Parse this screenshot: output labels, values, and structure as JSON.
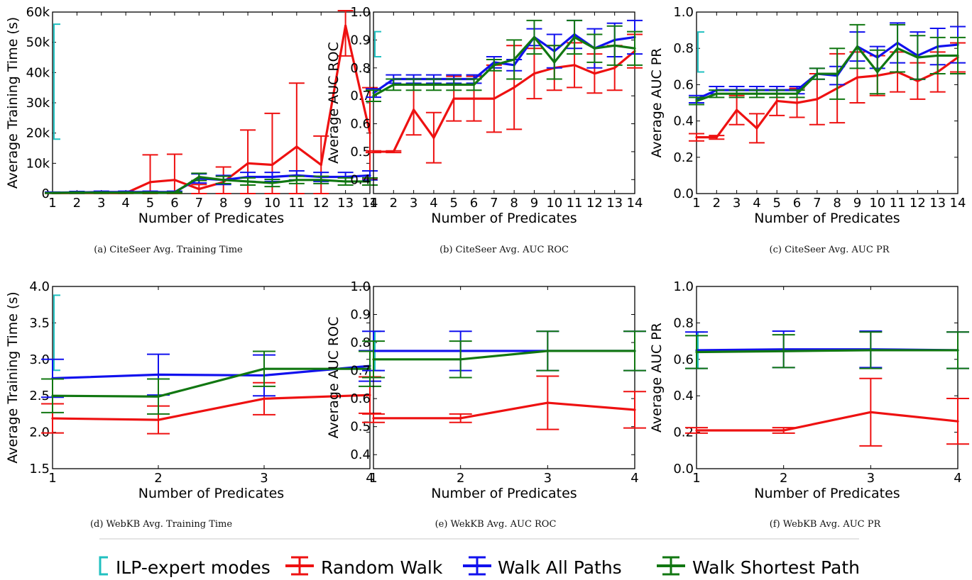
{
  "legend": {
    "entries": [
      {
        "label": "ILP-expert modes",
        "color": "#20c0c0",
        "marker": "bracket"
      },
      {
        "label": "Random Walk",
        "color": "#ee1111",
        "marker": "errorbar"
      },
      {
        "label": "Walk All Paths",
        "color": "#1111ee",
        "marker": "errorbar"
      },
      {
        "label": "Walk Shortest Path",
        "color": "#117711",
        "marker": "errorbar"
      }
    ]
  },
  "chart_data": [
    {
      "type": "line",
      "caption": "(a) CiteSeer Avg. Training Time",
      "xlabel": "Number of Predicates",
      "ylabel": "Average Training Time (s)",
      "xlim": [
        1,
        14
      ],
      "ylim": [
        0,
        60000
      ],
      "xticks": [
        "1",
        "2",
        "3",
        "4",
        "5",
        "6",
        "7",
        "8",
        "9",
        "10",
        "11",
        "12",
        "13",
        "14"
      ],
      "yticks": [
        "0",
        "10k",
        "20k",
        "30k",
        "40k",
        "50k",
        "60k"
      ],
      "ilp": {
        "y": 37000,
        "low": 18000,
        "high": 56000
      },
      "series": [
        {
          "name": "Random Walk",
          "color": "#ee1111",
          "x": [
            1,
            2,
            3,
            4,
            5,
            6,
            7,
            8,
            9,
            10,
            11,
            12,
            13,
            14
          ],
          "y": [
            150,
            200,
            200,
            150,
            3800,
            4500,
            1500,
            3800,
            10000,
            9500,
            15500,
            9500,
            55500,
            20000
          ],
          "err": [
            100,
            100,
            100,
            100,
            9000,
            8500,
            1500,
            5000,
            11000,
            17000,
            21000,
            9500,
            10000,
            15000
          ]
        },
        {
          "name": "Walk All Paths",
          "color": "#1111ee",
          "x": [
            1,
            2,
            3,
            4,
            5,
            6,
            7,
            8,
            9,
            10,
            11,
            12,
            13,
            14
          ],
          "y": [
            300,
            400,
            500,
            500,
            500,
            500,
            5000,
            4500,
            5500,
            5500,
            6000,
            5500,
            5500,
            6000
          ],
          "err": [
            200,
            300,
            300,
            300,
            300,
            300,
            1500,
            1500,
            1500,
            1500,
            1500,
            1500,
            1500,
            1500
          ]
        },
        {
          "name": "Walk Shortest Path",
          "color": "#117711",
          "x": [
            1,
            2,
            3,
            4,
            5,
            6,
            7,
            8,
            9,
            10,
            11,
            12,
            13,
            14
          ],
          "y": [
            200,
            300,
            300,
            300,
            300,
            300,
            5500,
            4500,
            4000,
            3500,
            4500,
            4500,
            4000,
            4000
          ],
          "err": [
            100,
            200,
            200,
            200,
            200,
            200,
            1200,
            1200,
            1200,
            1200,
            1200,
            1200,
            1200,
            1200
          ]
        }
      ]
    },
    {
      "type": "line",
      "caption": "(b) CiteSeer Avg. AUC ROC",
      "xlabel": "Number of Predicates",
      "ylabel": "Average AUC ROC",
      "xlim": [
        1,
        14
      ],
      "ylim": [
        0.35,
        1.0
      ],
      "xticks": [
        "1",
        "2",
        "3",
        "4",
        "5",
        "6",
        "7",
        "8",
        "9",
        "10",
        "11",
        "12",
        "13",
        "14"
      ],
      "yticks": [
        "0.4",
        "0.5",
        "0.6",
        "0.7",
        "0.8",
        "0.9",
        "1.0"
      ],
      "ilp": {
        "y": 0.88,
        "low": 0.84,
        "high": 0.93
      },
      "series": [
        {
          "name": "Random Walk",
          "color": "#ee1111",
          "x": [
            1,
            2,
            3,
            4,
            5,
            6,
            7,
            8,
            9,
            10,
            11,
            12,
            13,
            14
          ],
          "y": [
            0.5,
            0.5,
            0.65,
            0.55,
            0.69,
            0.69,
            0.69,
            0.73,
            0.78,
            0.8,
            0.81,
            0.78,
            0.8,
            0.86
          ],
          "err": [
            0.003,
            0.003,
            0.09,
            0.09,
            0.08,
            0.08,
            0.12,
            0.15,
            0.09,
            0.08,
            0.08,
            0.07,
            0.08,
            0.06
          ]
        },
        {
          "name": "Walk All Paths",
          "color": "#1111ee",
          "x": [
            1,
            2,
            3,
            4,
            5,
            6,
            7,
            8,
            9,
            10,
            11,
            12,
            13,
            14
          ],
          "y": [
            0.71,
            0.76,
            0.76,
            0.76,
            0.76,
            0.76,
            0.82,
            0.81,
            0.91,
            0.86,
            0.92,
            0.87,
            0.9,
            0.91
          ],
          "err": [
            0.015,
            0.015,
            0.015,
            0.015,
            0.015,
            0.015,
            0.02,
            0.02,
            0.03,
            0.06,
            0.05,
            0.07,
            0.06,
            0.06
          ]
        },
        {
          "name": "Walk Shortest Path",
          "color": "#117711",
          "x": [
            1,
            2,
            3,
            4,
            5,
            6,
            7,
            8,
            9,
            10,
            11,
            12,
            13,
            14
          ],
          "y": [
            0.7,
            0.74,
            0.74,
            0.74,
            0.74,
            0.74,
            0.81,
            0.83,
            0.91,
            0.82,
            0.91,
            0.87,
            0.88,
            0.87
          ],
          "err": [
            0.02,
            0.02,
            0.02,
            0.02,
            0.02,
            0.02,
            0.02,
            0.07,
            0.06,
            0.06,
            0.06,
            0.05,
            0.07,
            0.06
          ]
        }
      ]
    },
    {
      "type": "line",
      "caption": "(c) CiteSeer Avg. AUC PR",
      "xlabel": "Number of Predicates",
      "ylabel": "Average AUC PR",
      "xlim": [
        1,
        14
      ],
      "ylim": [
        0.0,
        1.0
      ],
      "xticks": [
        "1",
        "2",
        "3",
        "4",
        "5",
        "6",
        "7",
        "8",
        "9",
        "10",
        "11",
        "12",
        "13",
        "14"
      ],
      "yticks": [
        "0.0",
        "0.2",
        "0.4",
        "0.6",
        "0.8",
        "1.0"
      ],
      "ilp": {
        "y": 0.78,
        "low": 0.67,
        "high": 0.89
      },
      "series": [
        {
          "name": "Random Walk",
          "color": "#ee1111",
          "x": [
            1,
            2,
            3,
            4,
            5,
            6,
            7,
            8,
            9,
            10,
            11,
            12,
            13,
            14
          ],
          "y": [
            0.31,
            0.31,
            0.46,
            0.36,
            0.51,
            0.5,
            0.52,
            0.58,
            0.64,
            0.65,
            0.67,
            0.62,
            0.67,
            0.75
          ],
          "err": [
            0.02,
            0.01,
            0.08,
            0.08,
            0.08,
            0.08,
            0.14,
            0.19,
            0.14,
            0.11,
            0.11,
            0.1,
            0.11,
            0.08
          ]
        },
        {
          "name": "Walk All Paths",
          "color": "#1111ee",
          "x": [
            1,
            2,
            3,
            4,
            5,
            6,
            7,
            8,
            9,
            10,
            11,
            12,
            13,
            14
          ],
          "y": [
            0.52,
            0.57,
            0.57,
            0.57,
            0.57,
            0.57,
            0.66,
            0.65,
            0.81,
            0.75,
            0.83,
            0.76,
            0.81,
            0.82
          ],
          "err": [
            0.02,
            0.02,
            0.02,
            0.02,
            0.02,
            0.02,
            0.03,
            0.05,
            0.08,
            0.06,
            0.11,
            0.13,
            0.1,
            0.1
          ]
        },
        {
          "name": "Walk Shortest Path",
          "color": "#117711",
          "x": [
            1,
            2,
            3,
            4,
            5,
            6,
            7,
            8,
            9,
            10,
            11,
            12,
            13,
            14
          ],
          "y": [
            0.51,
            0.55,
            0.55,
            0.55,
            0.55,
            0.55,
            0.66,
            0.66,
            0.81,
            0.67,
            0.8,
            0.75,
            0.76,
            0.76
          ],
          "err": [
            0.02,
            0.02,
            0.02,
            0.02,
            0.02,
            0.02,
            0.03,
            0.14,
            0.12,
            0.12,
            0.13,
            0.12,
            0.1,
            0.1
          ]
        }
      ]
    },
    {
      "type": "line",
      "caption": "(d) WebKB Avg. Training Time",
      "xlabel": "Number of Predicates",
      "ylabel": "Average Training Time (s)",
      "xlim": [
        1,
        4
      ],
      "ylim": [
        1.5,
        4.0
      ],
      "xticks": [
        "1",
        "2",
        "3",
        "4"
      ],
      "yticks": [
        "1.5",
        "2.0",
        "2.5",
        "3.0",
        "3.5",
        "4.0"
      ],
      "ilp": {
        "y": 3.37,
        "low": 2.85,
        "high": 3.88
      },
      "series": [
        {
          "name": "Random Walk",
          "color": "#ee1111",
          "x": [
            1,
            2,
            3,
            4
          ],
          "y": [
            2.19,
            2.17,
            2.46,
            2.51
          ],
          "err": [
            0.2,
            0.19,
            0.22,
            0.25
          ]
        },
        {
          "name": "Walk All Paths",
          "color": "#1111ee",
          "x": [
            1,
            2,
            3,
            4
          ],
          "y": [
            2.74,
            2.79,
            2.78,
            2.91
          ],
          "err": [
            0.26,
            0.28,
            0.28,
            0.21
          ]
        },
        {
          "name": "Walk Shortest Path",
          "color": "#117711",
          "x": [
            1,
            2,
            3,
            4
          ],
          "y": [
            2.5,
            2.49,
            2.87,
            2.87
          ],
          "err": [
            0.23,
            0.24,
            0.24,
            0.24
          ]
        }
      ]
    },
    {
      "type": "line",
      "caption": "(e) WekKB Avg. AUC ROC",
      "xlabel": "Number of Predicates",
      "ylabel": "Average AUC ROC",
      "xlim": [
        1,
        4
      ],
      "ylim": [
        0.35,
        1.0
      ],
      "xticks": [
        "1",
        "2",
        "3",
        "4"
      ],
      "yticks": [
        "0.4",
        "0.5",
        "0.6",
        "0.7",
        "0.8",
        "0.9",
        "1.0"
      ],
      "ilp": {
        "y": 0.77,
        "low": 0.7,
        "high": 0.84
      },
      "series": [
        {
          "name": "Random Walk",
          "color": "#ee1111",
          "x": [
            1,
            2,
            3,
            4
          ],
          "y": [
            0.53,
            0.53,
            0.585,
            0.56
          ],
          "err": [
            0.015,
            0.015,
            0.095,
            0.065
          ]
        },
        {
          "name": "Walk All Paths",
          "color": "#1111ee",
          "x": [
            1,
            2,
            3,
            4
          ],
          "y": [
            0.77,
            0.77,
            0.77,
            0.77
          ],
          "err": [
            0.07,
            0.07,
            0.07,
            0.07
          ]
        },
        {
          "name": "Walk Shortest Path",
          "color": "#117711",
          "x": [
            1,
            2,
            3,
            4
          ],
          "y": [
            0.74,
            0.74,
            0.77,
            0.77
          ],
          "err": [
            0.065,
            0.065,
            0.07,
            0.07
          ]
        }
      ]
    },
    {
      "type": "line",
      "caption": "(f) WebKB Avg. AUC PR",
      "xlabel": "Number of Predicates",
      "ylabel": "Average AUC PR",
      "xlim": [
        1,
        4
      ],
      "ylim": [
        0.0,
        1.0
      ],
      "xticks": [
        "1",
        "2",
        "3",
        "4"
      ],
      "yticks": [
        "0.0",
        "0.2",
        "0.4",
        "0.6",
        "0.8",
        "1.0"
      ],
      "ilp": {
        "y": 0.65,
        "low": 0.55,
        "high": 0.75
      },
      "series": [
        {
          "name": "Random Walk",
          "color": "#ee1111",
          "x": [
            1,
            2,
            3,
            4
          ],
          "y": [
            0.21,
            0.21,
            0.31,
            0.26
          ],
          "err": [
            0.015,
            0.015,
            0.185,
            0.125
          ]
        },
        {
          "name": "Walk All Paths",
          "color": "#1111ee",
          "x": [
            1,
            2,
            3,
            4
          ],
          "y": [
            0.65,
            0.655,
            0.655,
            0.65
          ],
          "err": [
            0.1,
            0.1,
            0.1,
            0.1
          ]
        },
        {
          "name": "Walk Shortest Path",
          "color": "#117711",
          "x": [
            1,
            2,
            3,
            4
          ],
          "y": [
            0.64,
            0.645,
            0.65,
            0.65
          ],
          "err": [
            0.09,
            0.09,
            0.1,
            0.1
          ]
        }
      ]
    }
  ]
}
